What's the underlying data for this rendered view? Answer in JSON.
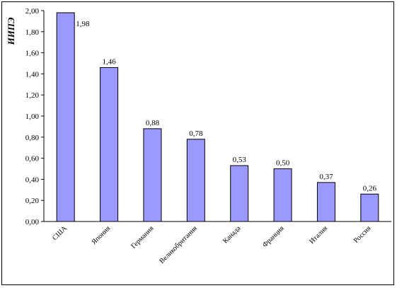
{
  "chart_data": {
    "type": "bar",
    "ylabel": "ИИПЭ",
    "ylim": [
      0,
      2.0
    ],
    "y_ticks": [
      "0,00",
      "0,20",
      "0,40",
      "0,60",
      "0,80",
      "1,00",
      "1,20",
      "1,40",
      "1,60",
      "1,80",
      "2,00"
    ],
    "categories": [
      "США",
      "Япония",
      "Германия",
      "Великобритания",
      "Канада",
      "Франция",
      "Италия",
      "Россия"
    ],
    "values": [
      1.98,
      1.46,
      0.88,
      0.78,
      0.53,
      0.5,
      0.37,
      0.26
    ],
    "value_labels": [
      "1,98",
      "1,46",
      "0,88",
      "0,78",
      "0,53",
      "0,50",
      "0,37",
      "0,26"
    ],
    "bar_color": "#9999ff",
    "gridlines": false,
    "legend": "none"
  }
}
